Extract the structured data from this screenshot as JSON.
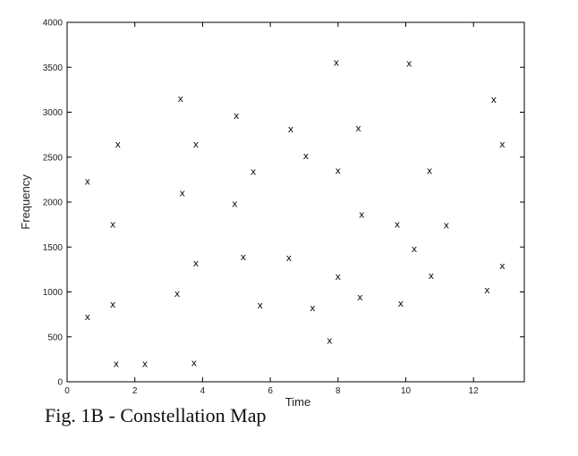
{
  "caption": "Fig. 1B - Constellation Map",
  "chart_data": {
    "type": "scatter",
    "title": "",
    "xlabel": "Time",
    "ylabel": "Frequency",
    "xlim": [
      0,
      13.5
    ],
    "ylim": [
      0,
      4000
    ],
    "x_ticks": [
      0,
      2,
      4,
      6,
      8,
      10,
      12
    ],
    "y_ticks": [
      0,
      500,
      1000,
      1500,
      2000,
      2500,
      3000,
      3500,
      4000
    ],
    "marker": "x",
    "grid": false,
    "points": [
      {
        "x": 0.6,
        "y": 2230
      },
      {
        "x": 0.6,
        "y": 720
      },
      {
        "x": 1.35,
        "y": 1750
      },
      {
        "x": 1.35,
        "y": 860
      },
      {
        "x": 1.45,
        "y": 200
      },
      {
        "x": 1.5,
        "y": 2640
      },
      {
        "x": 2.3,
        "y": 200
      },
      {
        "x": 3.25,
        "y": 980
      },
      {
        "x": 3.35,
        "y": 3150
      },
      {
        "x": 3.4,
        "y": 2100
      },
      {
        "x": 3.75,
        "y": 210
      },
      {
        "x": 3.8,
        "y": 1320
      },
      {
        "x": 3.8,
        "y": 2640
      },
      {
        "x": 4.95,
        "y": 1980
      },
      {
        "x": 5.0,
        "y": 2960
      },
      {
        "x": 5.2,
        "y": 1390
      },
      {
        "x": 5.5,
        "y": 2340
      },
      {
        "x": 5.7,
        "y": 850
      },
      {
        "x": 6.55,
        "y": 1380
      },
      {
        "x": 6.6,
        "y": 2810
      },
      {
        "x": 7.05,
        "y": 2510
      },
      {
        "x": 7.25,
        "y": 820
      },
      {
        "x": 7.75,
        "y": 460
      },
      {
        "x": 7.95,
        "y": 3550
      },
      {
        "x": 8.0,
        "y": 2350
      },
      {
        "x": 8.0,
        "y": 1170
      },
      {
        "x": 8.6,
        "y": 2820
      },
      {
        "x": 8.65,
        "y": 940
      },
      {
        "x": 8.7,
        "y": 1860
      },
      {
        "x": 9.75,
        "y": 1750
      },
      {
        "x": 9.85,
        "y": 870
      },
      {
        "x": 10.1,
        "y": 3540
      },
      {
        "x": 10.25,
        "y": 1480
      },
      {
        "x": 10.7,
        "y": 2350
      },
      {
        "x": 10.75,
        "y": 1180
      },
      {
        "x": 11.2,
        "y": 1740
      },
      {
        "x": 12.4,
        "y": 1020
      },
      {
        "x": 12.6,
        "y": 3140
      },
      {
        "x": 12.85,
        "y": 2640
      },
      {
        "x": 12.85,
        "y": 1290
      }
    ]
  }
}
